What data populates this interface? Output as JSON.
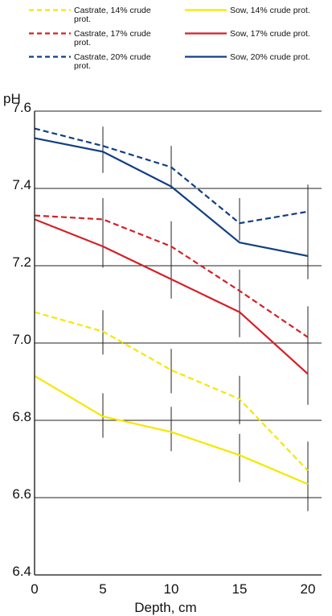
{
  "chart_data": {
    "type": "line",
    "title": "",
    "xlabel": "Depth, cm",
    "ylabel": "pH",
    "x": [
      0,
      5,
      10,
      15,
      20
    ],
    "xlim": [
      0,
      21
    ],
    "ylim": [
      6.4,
      7.6
    ],
    "x_ticks": [
      "0",
      "5",
      "10",
      "15",
      "20"
    ],
    "y_ticks": [
      "6.4",
      "6.6",
      "6.8",
      "7.0",
      "7.2",
      "7.4",
      "7.6"
    ],
    "grid": "horizontal",
    "legend_placement": "top",
    "series": [
      {
        "name": "Castrate, 14% crude prot.",
        "legend_lines": [
          "Castrate, 14% crude",
          "prot."
        ],
        "style": "dashed",
        "color": "#f4e800",
        "values": [
          7.08,
          7.03,
          6.93,
          6.855,
          6.67
        ]
      },
      {
        "name": "Sow, 14% crude prot.",
        "legend_lines": [
          "Sow, 14% crude prot."
        ],
        "style": "solid",
        "color": "#f4e800",
        "values": [
          6.915,
          6.81,
          6.77,
          6.71,
          6.635
        ]
      },
      {
        "name": "Castrate, 17% crude prot.",
        "legend_lines": [
          "Castrate, 17% crude",
          "prot."
        ],
        "style": "dashed",
        "color": "#d42027",
        "values": [
          7.33,
          7.32,
          7.25,
          7.135,
          7.015
        ]
      },
      {
        "name": "Sow, 17% crude prot.",
        "legend_lines": [
          "Sow, 17% crude prot."
        ],
        "style": "solid",
        "color": "#d42027",
        "values": [
          7.32,
          7.25,
          7.165,
          7.08,
          6.92
        ]
      },
      {
        "name": "Castrate, 20% crude prot.",
        "legend_lines": [
          "Castrate, 20% crude",
          "prot."
        ],
        "style": "dashed",
        "color": "#123f82",
        "values": [
          7.555,
          7.51,
          7.455,
          7.31,
          7.34
        ]
      },
      {
        "name": "Sow, 20% crude prot.",
        "legend_lines": [
          "Sow, 20% crude prot."
        ],
        "style": "solid",
        "color": "#123f82",
        "values": [
          7.53,
          7.495,
          7.405,
          7.26,
          7.225
        ]
      }
    ],
    "error_bars": [
      {
        "x": 5,
        "low": 7.44,
        "high": 7.56
      },
      {
        "x": 10,
        "low": 7.4,
        "high": 7.51
      },
      {
        "x": 15,
        "low": 7.265,
        "high": 7.375
      },
      {
        "x": 20,
        "low": 7.165,
        "high": 7.41
      },
      {
        "x": 5,
        "low": 7.195,
        "high": 7.375
      },
      {
        "x": 10,
        "low": 7.115,
        "high": 7.315
      },
      {
        "x": 15,
        "low": 7.015,
        "high": 7.19
      },
      {
        "x": 20,
        "low": 6.84,
        "high": 7.095
      },
      {
        "x": 5,
        "low": 6.97,
        "high": 7.085
      },
      {
        "x": 10,
        "low": 6.87,
        "high": 6.985
      },
      {
        "x": 15,
        "low": 6.79,
        "high": 6.915
      },
      {
        "x": 20,
        "low": 6.645,
        "high": 6.745
      },
      {
        "x": 5,
        "low": 6.755,
        "high": 6.87
      },
      {
        "x": 10,
        "low": 6.72,
        "high": 6.835
      },
      {
        "x": 15,
        "low": 6.64,
        "high": 6.765
      },
      {
        "x": 20,
        "low": 6.565,
        "high": 6.7
      }
    ]
  }
}
